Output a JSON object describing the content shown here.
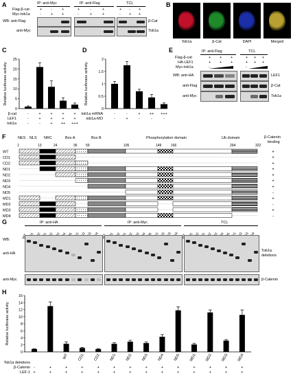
{
  "panel_labels": [
    "A",
    "B",
    "C",
    "D",
    "E",
    "F",
    "G",
    "H"
  ],
  "panelA": {
    "ip_myc": "IP: anti-Myc",
    "ip_flag": "IP: anti-Flag",
    "tcl": "TCL",
    "row1": "Flag-β-cat",
    "row2": "Myc-tob1a",
    "row1_signs": [
      "+",
      "-",
      "+",
      "+",
      "-",
      "+",
      "+",
      "-",
      "+"
    ],
    "row2_signs": [
      "-",
      "+",
      "+",
      "-",
      "+",
      "+",
      "-",
      "+",
      "+"
    ],
    "wb1": "WB: anti-Flag",
    "wb2": "anti-Myc",
    "right1": "β-Cat",
    "right2": "Tob1a"
  },
  "panelB": {
    "labels": [
      "Tob1a",
      "β-Cat",
      "DAPI",
      "Merged"
    ],
    "colors": [
      "#c0102a",
      "#1e8a2a",
      "#1b2fa8",
      "#b8a030"
    ]
  },
  "panelE": {
    "ip_flag": "IP: anti-Flag",
    "tcl": "TCL",
    "rows": [
      "Flag-β-cat",
      "HA-LEF1",
      "Myc-tob1a"
    ],
    "row_signs": [
      [
        "+",
        "+",
        "+",
        "+",
        "+",
        "+"
      ],
      [
        "+",
        "+",
        "+",
        "+",
        "+",
        "+"
      ],
      [
        "-",
        "",
        "",
        "-",
        "",
        ""
      ]
    ],
    "wb1": "WB: anti-HA",
    "wb2": "anti-Flag",
    "wb3": "anti-Myc",
    "right": [
      "LEF1",
      "β-Cat",
      "Tob1a"
    ]
  },
  "panelF": {
    "headers": [
      "NES",
      "NLS",
      "NRC",
      "Box A",
      "Box B",
      "Phosphorylation domain",
      "Ub domain"
    ],
    "right_header": [
      "β-Catenin",
      "binding"
    ],
    "positions": [
      "1",
      "13",
      "24",
      "36",
      "59",
      "105",
      "149",
      "166",
      "294",
      "322"
    ],
    "constructs": [
      "WT",
      "CD1",
      "CD2",
      "ND1",
      "ND2",
      "ND3",
      "ND4",
      "ND5",
      "MD1",
      "MD2",
      "MD3",
      "MD4"
    ],
    "binding": [
      "+",
      "+",
      "+",
      "+",
      "+",
      "+",
      "+",
      "-",
      "+",
      "-",
      "+",
      "-"
    ]
  },
  "panelG": {
    "wb": "WB:",
    "ip_ha": "IP: anti-HA",
    "ip_myc": "IP: anti-Myc",
    "tcl": "TCL",
    "lanes": [
      "WT",
      "CD1",
      "CD2",
      "ND1",
      "ND2",
      "ND3",
      "ND4",
      "ND5",
      "MD1",
      "MD2",
      "MD3",
      "MD4"
    ],
    "left1": "anti-HA",
    "left2": "anti-Myc",
    "right1": [
      "Tob1a",
      "deletions"
    ],
    "right2": "β-Catenin"
  },
  "chart_data": [
    {
      "type": "bar",
      "panel": "C",
      "ylabel": "Relative luciferase activity",
      "ylim": [
        0,
        25
      ],
      "yticks": [
        0,
        5,
        10,
        15,
        20,
        25
      ],
      "values": [
        1,
        21,
        11,
        4,
        2
      ],
      "errors": [
        0.4,
        2.2,
        3.0,
        1.5,
        0.8
      ],
      "factor_rows": [
        {
          "name": "β-cat",
          "signs": [
            "-",
            "+",
            "+",
            "+",
            "+"
          ]
        },
        {
          "name": "LEF1",
          "signs": [
            "-",
            "+",
            "+",
            "+",
            "+"
          ]
        },
        {
          "name": "tob1a",
          "signs": [
            "-",
            "-",
            "+",
            "++",
            "+++"
          ]
        }
      ]
    },
    {
      "type": "bar",
      "panel": "D",
      "ylabel": "Relative luciferase activity",
      "ylim": [
        0,
        2.0
      ],
      "yticks": [
        0,
        0.5,
        1.0,
        1.5,
        2.0
      ],
      "values": [
        1.0,
        1.75,
        0.7,
        0.45,
        0.18
      ],
      "errors": [
        0.1,
        0.15,
        0.08,
        0.12,
        0.05
      ],
      "factor_rows": [
        {
          "name": "tob1a mRNA",
          "signs": [
            "-",
            "-",
            "+",
            "++",
            "+++"
          ]
        },
        {
          "name": "tob1a-MO",
          "signs": [
            "-",
            "+",
            "-",
            "-",
            "-"
          ]
        }
      ]
    },
    {
      "type": "bar",
      "panel": "H",
      "ylabel": "Relative luciferase activity",
      "ylim": [
        0,
        16
      ],
      "yticks": [
        0,
        2,
        4,
        6,
        8,
        10,
        12,
        14,
        16
      ],
      "categories": [
        "",
        "",
        "WT",
        "CD1",
        "CD2",
        "ND1",
        "ND2",
        "ND3",
        "ND4",
        "ND5",
        "MD1",
        "MD2",
        "MD3",
        "MD4"
      ],
      "values": [
        0.8,
        13.0,
        2.3,
        1.1,
        0.8,
        2.3,
        2.9,
        2.5,
        4.3,
        11.8,
        2.1,
        11.2,
        3.2,
        10.5
      ],
      "errors": [
        0.1,
        1.2,
        0.5,
        0.2,
        0.15,
        0.3,
        0.4,
        0.3,
        0.6,
        1.0,
        0.3,
        0.7,
        0.3,
        1.4
      ],
      "factor_rows": [
        {
          "name": "Tob1a deletions",
          "signs": [
            "",
            "",
            "",
            "",
            "",
            "",
            "",
            "",
            "",
            "",
            "",
            "",
            "",
            ""
          ]
        },
        {
          "name": "β-Catenin",
          "signs": [
            "-",
            "+",
            "+",
            "+",
            "+",
            "+",
            "+",
            "+",
            "+",
            "+",
            "+",
            "+",
            "+",
            "+"
          ]
        },
        {
          "name": "LEF-1",
          "signs": [
            "+",
            "+",
            "+",
            "+",
            "+",
            "+",
            "+",
            "+",
            "+",
            "+",
            "+",
            "+",
            "+",
            "+"
          ]
        }
      ]
    }
  ]
}
